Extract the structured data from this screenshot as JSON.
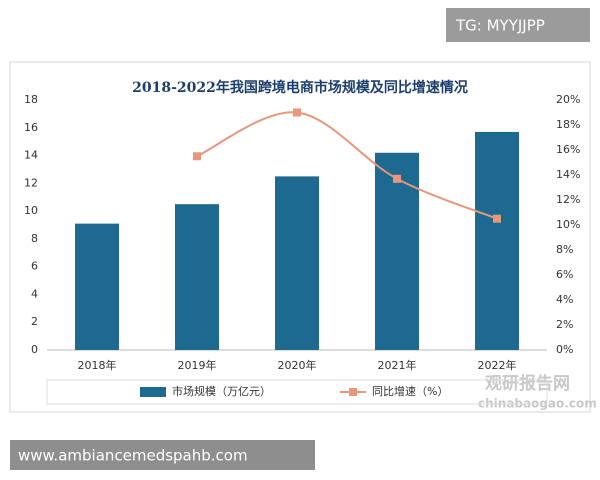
{
  "chart_data": {
    "type": "bar",
    "title": "2018-2022年我国跨境电商市场规模及同比增速情况",
    "categories": [
      "2018年",
      "2019年",
      "2020年",
      "2021年",
      "2022年"
    ],
    "series": [
      {
        "name": "市场规模（万亿元）",
        "color": "#1d6990",
        "values": [
          9.1,
          10.5,
          12.5,
          14.2,
          15.7
        ]
      },
      {
        "name": "同比增速（%）",
        "color": "#e8977a",
        "type": "line",
        "axis": "y2",
        "values": [
          null,
          15.5,
          19,
          13.7,
          10.5
        ]
      }
    ],
    "ylim": [
      0,
      18
    ],
    "yticks": [
      0,
      2,
      4,
      6,
      8,
      10,
      12,
      14,
      16,
      18
    ],
    "y2lim": [
      0,
      20
    ],
    "y2ticks": [
      {
        "value": 0,
        "label": "0%"
      },
      {
        "value": 2,
        "label": "2%"
      },
      {
        "value": 4,
        "label": "4%"
      },
      {
        "value": 6,
        "label": "6%"
      },
      {
        "value": 8,
        "label": "8%"
      },
      {
        "value": 10,
        "label": "10%"
      },
      {
        "value": 12,
        "label": "12%"
      },
      {
        "value": 14,
        "label": "14%"
      },
      {
        "value": 16,
        "label": "16%"
      },
      {
        "value": 18,
        "label": "18%"
      },
      {
        "value": 20,
        "label": "20%"
      }
    ],
    "legend": "bottom"
  },
  "overlays": {
    "tag": "TG: MYYJJPP",
    "url": "www.ambiancemedspahb.com",
    "watermark": "观研报告网",
    "watermark_url": "chinabaogao.com"
  }
}
